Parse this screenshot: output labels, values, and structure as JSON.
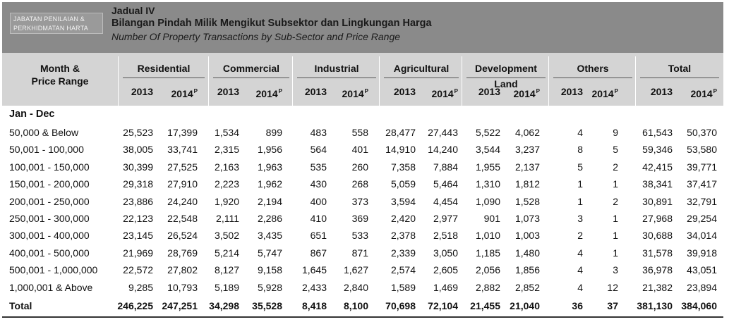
{
  "header": {
    "dept_line1": "JABATAN PENILAIAN &",
    "dept_line2": "PERKHIDMATAN HARTA",
    "table_label": "Jadual  IV",
    "title_malay": "Bilangan Pindah Milik Mengikut Subsektor dan Lingkungan Harga",
    "title_english": "Number Of Property Transactions by Sub-Sector and Price Range"
  },
  "columns": {
    "month_price_line1": "Month &",
    "month_price_line2": "Price Range",
    "groups": [
      "Residential",
      "Commercial",
      "Industrial",
      "Agricultural",
      "Development Land",
      "Others",
      "Total"
    ],
    "year_2013": "2013",
    "year_2014": "2014",
    "prelim_mark": "P"
  },
  "period": "Jan - Dec",
  "rows": [
    {
      "label": "50,000 & Below",
      "values": [
        "25,523",
        "17,399",
        "1,534",
        "899",
        "483",
        "558",
        "28,477",
        "27,443",
        "5,522",
        "4,062",
        "4",
        "9",
        "61,543",
        "50,370"
      ]
    },
    {
      "label": "50,001 - 100,000",
      "values": [
        "38,005",
        "33,741",
        "2,315",
        "1,956",
        "564",
        "401",
        "14,910",
        "14,240",
        "3,544",
        "3,237",
        "8",
        "5",
        "59,346",
        "53,580"
      ]
    },
    {
      "label": "100,001 - 150,000",
      "values": [
        "30,399",
        "27,525",
        "2,163",
        "1,963",
        "535",
        "260",
        "7,358",
        "7,884",
        "1,955",
        "2,137",
        "5",
        "2",
        "42,415",
        "39,771"
      ]
    },
    {
      "label": "150,001 - 200,000",
      "values": [
        "29,318",
        "27,910",
        "2,223",
        "1,962",
        "430",
        "268",
        "5,059",
        "5,464",
        "1,310",
        "1,812",
        "1",
        "1",
        "38,341",
        "37,417"
      ]
    },
    {
      "label": "200,001 - 250,000",
      "values": [
        "23,886",
        "24,240",
        "1,920",
        "2,194",
        "400",
        "373",
        "3,594",
        "4,454",
        "1,090",
        "1,528",
        "1",
        "2",
        "30,891",
        "32,791"
      ]
    },
    {
      "label": "250,001 - 300,000",
      "values": [
        "22,123",
        "22,548",
        "2,111",
        "2,286",
        "410",
        "369",
        "2,420",
        "2,977",
        "901",
        "1,073",
        "3",
        "1",
        "27,968",
        "29,254"
      ]
    },
    {
      "label": "300,001 - 400,000",
      "values": [
        "23,145",
        "26,524",
        "3,502",
        "3,435",
        "651",
        "533",
        "2,378",
        "2,518",
        "1,010",
        "1,003",
        "2",
        "1",
        "30,688",
        "34,014"
      ]
    },
    {
      "label": "400,001 - 500,000",
      "values": [
        "21,969",
        "28,769",
        "5,214",
        "5,747",
        "867",
        "871",
        "2,339",
        "3,050",
        "1,185",
        "1,480",
        "4",
        "1",
        "31,578",
        "39,918"
      ]
    },
    {
      "label": "500,001 - 1,000,000",
      "values": [
        "22,572",
        "27,802",
        "8,127",
        "9,158",
        "1,645",
        "1,627",
        "2,574",
        "2,605",
        "2,056",
        "1,856",
        "4",
        "3",
        "36,978",
        "43,051"
      ]
    },
    {
      "label": "1,000,001 & Above",
      "values": [
        "9,285",
        "10,793",
        "5,189",
        "5,928",
        "2,433",
        "2,840",
        "1,589",
        "1,469",
        "2,882",
        "2,852",
        "4",
        "12",
        "21,382",
        "23,894"
      ]
    }
  ],
  "total_row": {
    "label": "Total",
    "values": [
      "246,225",
      "247,251",
      "34,298",
      "35,528",
      "8,418",
      "8,100",
      "70,698",
      "72,104",
      "21,455",
      "21,040",
      "36",
      "37",
      "381,130",
      "384,060"
    ]
  },
  "colors": {
    "banner": "#8a8a8a",
    "header_bg": "#d4d4d4"
  }
}
